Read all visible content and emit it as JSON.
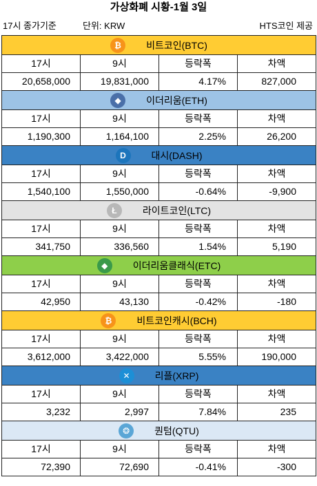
{
  "title": "가상화폐 시황-1월 3일",
  "subtitle": {
    "basis": "17시 종가기준",
    "unit": "단위: KRW",
    "source": "HTS코인 제공"
  },
  "columns": [
    "17시",
    "9시",
    "등락폭",
    "차액"
  ],
  "coins": [
    {
      "name": "비트코인(BTC)",
      "icon": "bitcoin-icon",
      "icon_glyph": "₿",
      "icon_color": "#f7931a",
      "header_color": "#ffcc33",
      "values": [
        "20,658,000",
        "19,831,000",
        "4.17%",
        "827,000"
      ]
    },
    {
      "name": "이더리움(ETH)",
      "icon": "ethereum-icon",
      "icon_glyph": "◆",
      "icon_color": "#4a6fa8",
      "header_color": "#9dc3e6",
      "values": [
        "1,190,300",
        "1,164,100",
        "2.25%",
        "26,200"
      ]
    },
    {
      "name": "대시(DASH)",
      "icon": "dash-icon",
      "icon_glyph": "D",
      "icon_color": "#1c75bc",
      "header_color": "#3a82c4",
      "values": [
        "1,540,100",
        "1,550,000",
        "-0.64%",
        "-9,900"
      ]
    },
    {
      "name": "라이트코인(LTC)",
      "icon": "litecoin-icon",
      "icon_glyph": "Ł",
      "icon_color": "#b8b8b8",
      "header_color": "#e3e3e3",
      "values": [
        "341,750",
        "336,560",
        "1.54%",
        "5,190"
      ]
    },
    {
      "name": "이더리움클래식(ETC)",
      "icon": "ethereum-classic-icon",
      "icon_glyph": "◆",
      "icon_color": "#3a9a4a",
      "header_color": "#8ecf4a",
      "values": [
        "42,950",
        "43,130",
        "-0.42%",
        "-180"
      ]
    },
    {
      "name": "비트코인캐시(BCH)",
      "icon": "bitcoin-cash-icon",
      "icon_glyph": "₿",
      "icon_color": "#f7931a",
      "header_color": "#ffcc33",
      "values": [
        "3,612,000",
        "3,422,000",
        "5.55%",
        "190,000"
      ]
    },
    {
      "name": "리플(XRP)",
      "icon": "ripple-icon",
      "icon_glyph": "✕",
      "icon_color": "#1c8fd6",
      "header_color": "#3a82c4",
      "values": [
        "3,232",
        "2,997",
        "7.84%",
        "235"
      ]
    },
    {
      "name": "퀀텀(QTU)",
      "icon": "qtum-icon",
      "icon_glyph": "❂",
      "icon_color": "#5aa6d6",
      "header_color": "#dbe8f5",
      "values": [
        "72,390",
        "72,690",
        "-0.41%",
        "-300"
      ]
    }
  ]
}
